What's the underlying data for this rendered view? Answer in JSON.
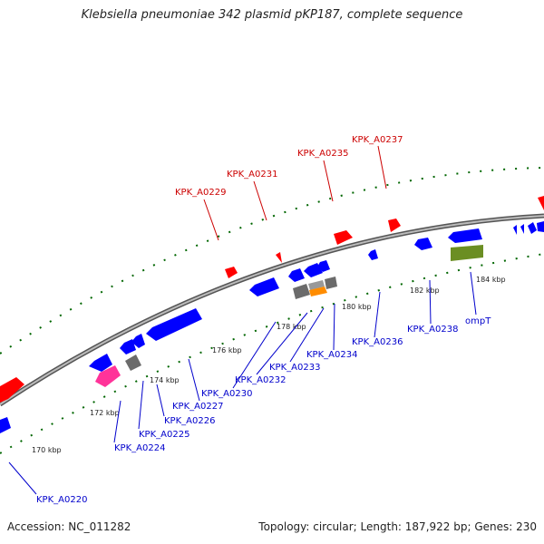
{
  "title": "Klebsiella pneumoniae 342 plasmid pKP187, complete sequence",
  "footer": {
    "accession": "Accession: NC_011282",
    "summary": "Topology: circular; Length: 187,922 bp; Genes: 230"
  },
  "colors": {
    "forward_feature": "#ff0000",
    "reverse_feature": "#0000ff",
    "pseudo_feature": "#6b6b6b",
    "rna_feature": "#ff8c00",
    "highlight_feature": "#ff3399",
    "other_feature": "#6b8e23",
    "backbone": "#888888",
    "tick": "#006600",
    "forward_label": "#cc0000",
    "reverse_label": "#0000cc"
  },
  "ticks": [
    "170 kbp",
    "172 kbp",
    "174 kbp",
    "176 kbp",
    "178 kbp",
    "180 kbp",
    "182 kbp",
    "184 kbp"
  ],
  "forward_genes": [
    "KPK_A0229",
    "KPK_A0231",
    "KPK_A0235",
    "KPK_A0237"
  ],
  "reverse_genes": [
    "KPK_A0220",
    "KPK_A0224",
    "KPK_A0225",
    "KPK_A0226",
    "KPK_A0227",
    "KPK_A0230",
    "KPK_A0232",
    "KPK_A0233",
    "KPK_A0234",
    "KPK_A0236",
    "KPK_A0238",
    "ompT"
  ]
}
